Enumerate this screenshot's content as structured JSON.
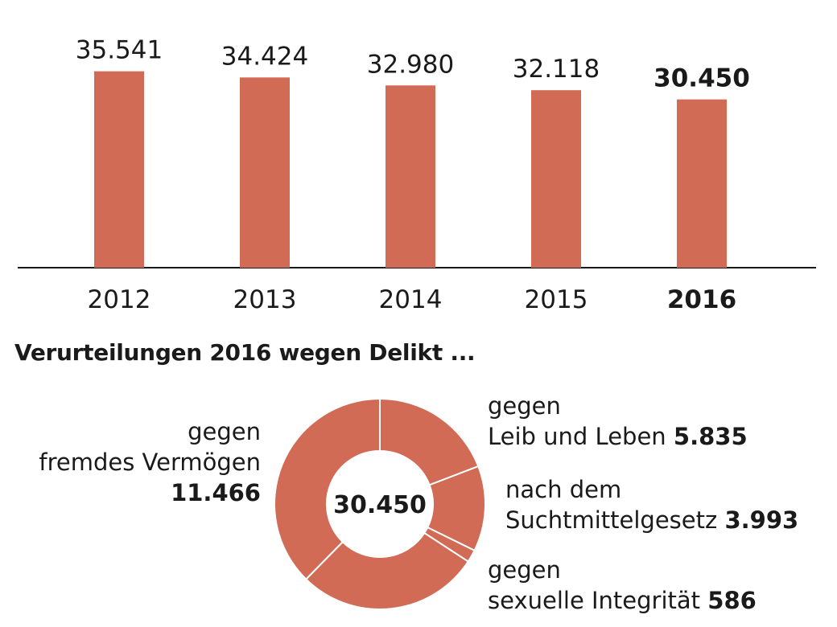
{
  "colors": {
    "bar": "#d26b55",
    "axis": "#1a1a1a",
    "separator": "#ffffff"
  },
  "chart_data": [
    {
      "type": "bar",
      "categories": [
        "2012",
        "2013",
        "2014",
        "2015",
        "2016"
      ],
      "values": [
        35541,
        34424,
        32980,
        32118,
        30450
      ],
      "value_labels": [
        "35.541",
        "34.424",
        "32.980",
        "32.118",
        "30.450"
      ],
      "highlight_index": 4,
      "ylim": [
        0,
        40000
      ],
      "grid": false
    },
    {
      "type": "pie",
      "title": "Verurteilungen 2016 wegen Delikt ...",
      "center_label": "30.450",
      "total": 30450,
      "slices": [
        {
          "label_line1": "gegen",
          "label_line2": "Leib und Leben",
          "value": 5835,
          "value_label": "5.835"
        },
        {
          "label_line1": "nach dem",
          "label_line2": "Suchtmittelgesetz",
          "value": 3993,
          "value_label": "3.993"
        },
        {
          "label_line1": "gegen",
          "label_line2": "sexuelle Integrität",
          "value": 586,
          "value_label": "586"
        },
        {
          "value": 8570
        },
        {
          "label_line1": "gegen",
          "label_line2": "fremdes Vermögen",
          "value": 11466,
          "value_label": "11.466"
        }
      ]
    }
  ]
}
